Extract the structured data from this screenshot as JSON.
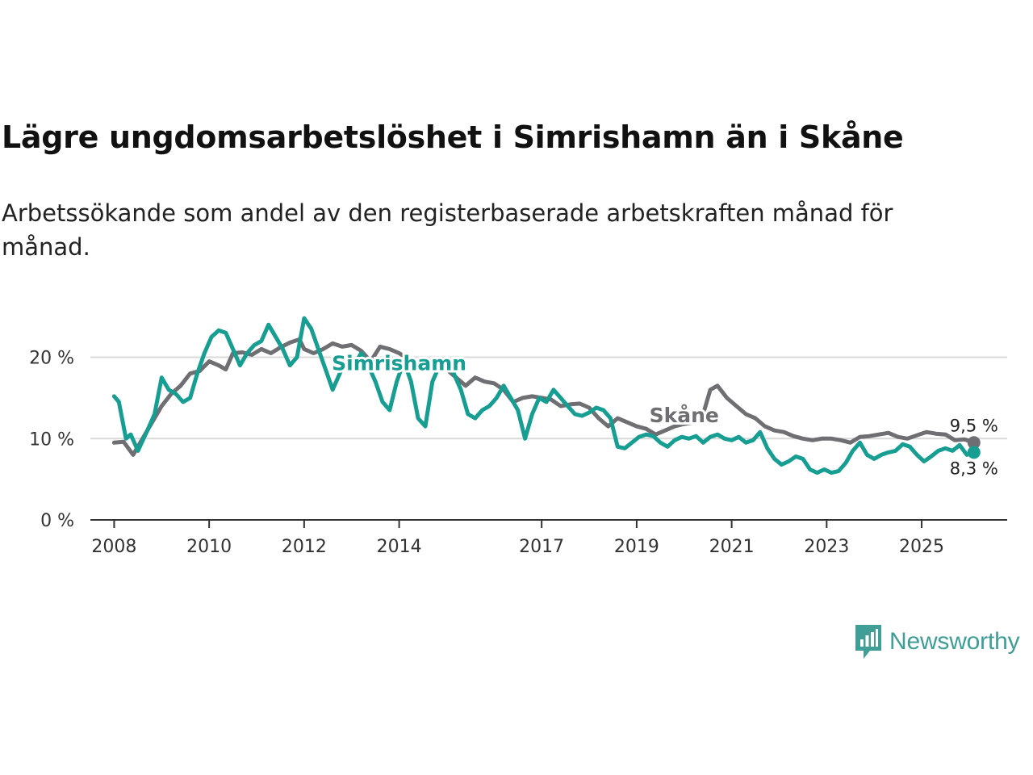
{
  "title": "Lägre ungdomsarbetslöshet i Simrishamn än i Skåne",
  "subtitle": "Arbetssökande som andel av den registerbaserade arbetskraften månad för månad.",
  "brand": {
    "name": "Newsworthy",
    "color": "#3f9e95"
  },
  "chart_data": {
    "type": "line",
    "title": "Lägre ungdomsarbetslöshet i Simrishamn än i Skåne",
    "xlabel": "",
    "ylabel": "",
    "ylim": [
      0,
      27
    ],
    "xlim": [
      2007.5,
      2026.8
    ],
    "y_ticks": [
      0,
      10,
      20
    ],
    "y_tick_labels": [
      "0 %",
      "10 %",
      "20 %"
    ],
    "x_ticks": [
      2008,
      2010,
      2012,
      2014,
      2017,
      2019,
      2021,
      2023,
      2025
    ],
    "x_tick_labels": [
      "2008",
      "2010",
      "2012",
      "2014",
      "2017",
      "2019",
      "2021",
      "2023",
      "2025"
    ],
    "grid": true,
    "series": [
      {
        "name": "Skåne",
        "color": "#6e6e73",
        "end_label": "9,5 %",
        "x": [
          2008.0,
          2008.2,
          2008.4,
          2008.6,
          2008.8,
          2009.0,
          2009.2,
          2009.4,
          2009.6,
          2009.8,
          2010.0,
          2010.2,
          2010.35,
          2010.5,
          2010.7,
          2010.9,
          2011.1,
          2011.3,
          2011.5,
          2011.7,
          2011.9,
          2012.0,
          2012.2,
          2012.4,
          2012.6,
          2012.8,
          2013.0,
          2013.2,
          2013.4,
          2013.6,
          2013.8,
          2014.0,
          2014.2,
          2014.4,
          2014.7,
          2015.0,
          2015.2,
          2015.4,
          2015.6,
          2015.8,
          2016.0,
          2016.2,
          2016.4,
          2016.6,
          2016.8,
          2017.0,
          2017.2,
          2017.4,
          2017.6,
          2017.8,
          2018.0,
          2018.2,
          2018.4,
          2018.6,
          2018.8,
          2019.0,
          2019.2,
          2019.4,
          2019.6,
          2019.8,
          2020.0,
          2020.2,
          2020.4,
          2020.55,
          2020.7,
          2020.9,
          2021.1,
          2021.3,
          2021.5,
          2021.7,
          2021.9,
          2022.1,
          2022.3,
          2022.5,
          2022.7,
          2022.9,
          2023.1,
          2023.3,
          2023.5,
          2023.7,
          2023.9,
          2024.1,
          2024.3,
          2024.5,
          2024.7,
          2024.9,
          2025.1,
          2025.3,
          2025.5,
          2025.7,
          2025.9,
          2026.1
        ],
        "values": [
          9.5,
          9.6,
          8.0,
          10.0,
          12.0,
          14.0,
          15.5,
          16.5,
          18.0,
          18.3,
          19.5,
          19.0,
          18.5,
          20.5,
          20.6,
          20.3,
          21.0,
          20.5,
          21.2,
          21.8,
          22.2,
          21.0,
          20.5,
          21.0,
          21.7,
          21.3,
          21.5,
          20.8,
          19.5,
          21.3,
          21.0,
          20.5,
          19.8,
          19.5,
          19.6,
          18.5,
          17.5,
          16.5,
          17.5,
          17.0,
          16.8,
          16.0,
          14.5,
          15.0,
          15.2,
          15.0,
          14.8,
          14.0,
          14.2,
          14.3,
          13.8,
          12.5,
          11.5,
          12.5,
          12.0,
          11.5,
          11.2,
          10.5,
          11.0,
          11.5,
          11.8,
          12.0,
          13.0,
          16.0,
          16.5,
          15.0,
          14.0,
          13.0,
          12.5,
          11.5,
          11.0,
          10.8,
          10.3,
          10.0,
          9.8,
          10.0,
          10.0,
          9.8,
          9.5,
          10.2,
          10.3,
          10.5,
          10.7,
          10.2,
          10.0,
          10.4,
          10.8,
          10.6,
          10.5,
          9.8,
          9.9,
          9.5
        ]
      },
      {
        "name": "Simrishamn",
        "color": "#159e91",
        "end_label": "8,3 %",
        "x": [
          2008.0,
          2008.1,
          2008.25,
          2008.35,
          2008.5,
          2008.7,
          2008.85,
          2009.0,
          2009.15,
          2009.3,
          2009.45,
          2009.6,
          2009.75,
          2009.9,
          2010.05,
          2010.2,
          2010.35,
          2010.5,
          2010.65,
          2010.8,
          2010.95,
          2011.1,
          2011.25,
          2011.4,
          2011.55,
          2011.7,
          2011.85,
          2012.0,
          2012.15,
          2012.3,
          2012.45,
          2012.6,
          2012.75,
          2012.9,
          2013.05,
          2013.2,
          2013.35,
          2013.5,
          2013.65,
          2013.8,
          2013.95,
          2014.1,
          2014.25,
          2014.4,
          2014.55,
          2014.7,
          2014.85,
          2015.0,
          2015.15,
          2015.3,
          2015.45,
          2015.6,
          2015.75,
          2015.9,
          2016.05,
          2016.2,
          2016.35,
          2016.5,
          2016.65,
          2016.8,
          2016.95,
          2017.1,
          2017.25,
          2017.4,
          2017.55,
          2017.7,
          2017.85,
          2018.0,
          2018.15,
          2018.3,
          2018.45,
          2018.6,
          2018.75,
          2018.9,
          2019.05,
          2019.2,
          2019.35,
          2019.5,
          2019.65,
          2019.8,
          2019.95,
          2020.1,
          2020.25,
          2020.4,
          2020.55,
          2020.7,
          2020.85,
          2021.0,
          2021.15,
          2021.3,
          2021.45,
          2021.6,
          2021.75,
          2021.9,
          2022.05,
          2022.2,
          2022.35,
          2022.5,
          2022.65,
          2022.8,
          2022.95,
          2023.1,
          2023.25,
          2023.4,
          2023.55,
          2023.7,
          2023.85,
          2024.0,
          2024.15,
          2024.3,
          2024.45,
          2024.6,
          2024.75,
          2024.9,
          2025.05,
          2025.2,
          2025.35,
          2025.5,
          2025.65,
          2025.8,
          2025.95,
          2026.1
        ],
        "values": [
          15.2,
          14.5,
          10.0,
          10.5,
          8.5,
          11.0,
          13.0,
          17.5,
          16.0,
          15.5,
          14.5,
          15.0,
          18.0,
          20.5,
          22.5,
          23.3,
          23.0,
          21.0,
          19.0,
          20.5,
          21.5,
          22.0,
          24.0,
          22.5,
          21.0,
          19.0,
          20.0,
          24.8,
          23.5,
          21.0,
          18.5,
          16.0,
          18.0,
          20.0,
          19.0,
          20.5,
          19.0,
          17.0,
          14.5,
          13.5,
          17.0,
          19.5,
          17.0,
          12.5,
          11.5,
          17.0,
          19.0,
          19.0,
          18.0,
          16.0,
          13.0,
          12.5,
          13.5,
          14.0,
          15.0,
          16.5,
          15.0,
          13.5,
          10.0,
          13.0,
          15.0,
          14.5,
          16.0,
          15.0,
          14.0,
          13.0,
          12.8,
          13.2,
          13.8,
          13.5,
          12.5,
          9.0,
          8.8,
          9.5,
          10.2,
          10.5,
          10.3,
          9.5,
          9.0,
          9.8,
          10.2,
          10.0,
          10.3,
          9.5,
          10.2,
          10.5,
          10.0,
          9.8,
          10.2,
          9.5,
          9.8,
          10.8,
          8.8,
          7.5,
          6.8,
          7.2,
          7.8,
          7.5,
          6.2,
          5.8,
          6.2,
          5.8,
          6.0,
          7.0,
          8.5,
          9.5,
          8.0,
          7.5,
          8.0,
          8.3,
          8.5,
          9.3,
          9.0,
          8.0,
          7.2,
          7.8,
          8.5,
          8.8,
          8.5,
          9.2,
          8.0,
          8.3
        ]
      }
    ],
    "annotations": [
      {
        "text": "Simrishamn",
        "series": "Simrishamn",
        "x": 2014.0,
        "y": 18.4
      },
      {
        "text": "Skåne",
        "series": "Skåne",
        "x": 2020.0,
        "y": 12.0
      }
    ]
  }
}
